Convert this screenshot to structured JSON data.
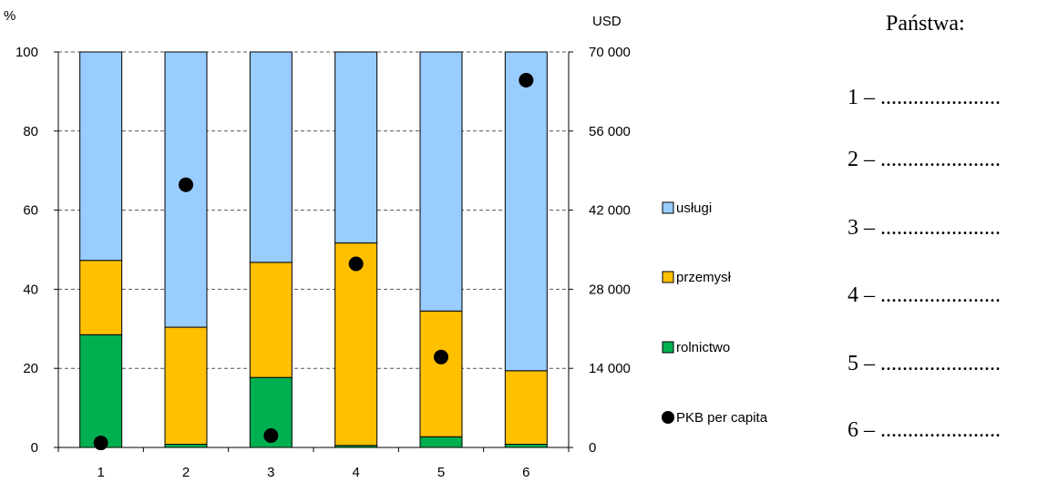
{
  "chart_data": {
    "type": "bar",
    "stacked": true,
    "categories": [
      "1",
      "2",
      "3",
      "4",
      "5",
      "6"
    ],
    "series": [
      {
        "name": "rolnictwo",
        "color": "#00b050",
        "values": [
          28.5,
          0.8,
          17.7,
          0.5,
          2.7,
          0.8
        ]
      },
      {
        "name": "przemysł",
        "color": "#ffc000",
        "values": [
          18.8,
          29.6,
          29.1,
          51.2,
          31.8,
          18.6
        ]
      },
      {
        "name": "usługi",
        "color": "#99ccff",
        "values": [
          52.7,
          69.6,
          53.2,
          48.3,
          65.5,
          80.6
        ]
      }
    ],
    "point_series": {
      "name": "PKB per capita",
      "color": "#000000",
      "axis": "right",
      "values": [
        800,
        46500,
        2100,
        32500,
        16000,
        65000
      ]
    },
    "left_axis": {
      "label": "%",
      "range": [
        0,
        100
      ],
      "ticks": [
        "0",
        "20",
        "40",
        "60",
        "80",
        "100"
      ]
    },
    "right_axis": {
      "label": "USD",
      "range": [
        0,
        70000
      ],
      "ticks": [
        "0",
        "14 000",
        "28 000",
        "42 000",
        "56 000",
        "70 000"
      ]
    },
    "grid": "dashed horizontal",
    "legend": {
      "placement": "right",
      "order": [
        "usługi",
        "przemysł",
        "rolnictwo",
        "PKB per capita"
      ]
    }
  },
  "answers": {
    "title": "Państwa:",
    "lines": [
      "1 – ......................",
      "2 – ......................",
      "3 – ......................",
      "4 – ......................",
      "5 – ......................",
      "6 – ......................"
    ]
  }
}
